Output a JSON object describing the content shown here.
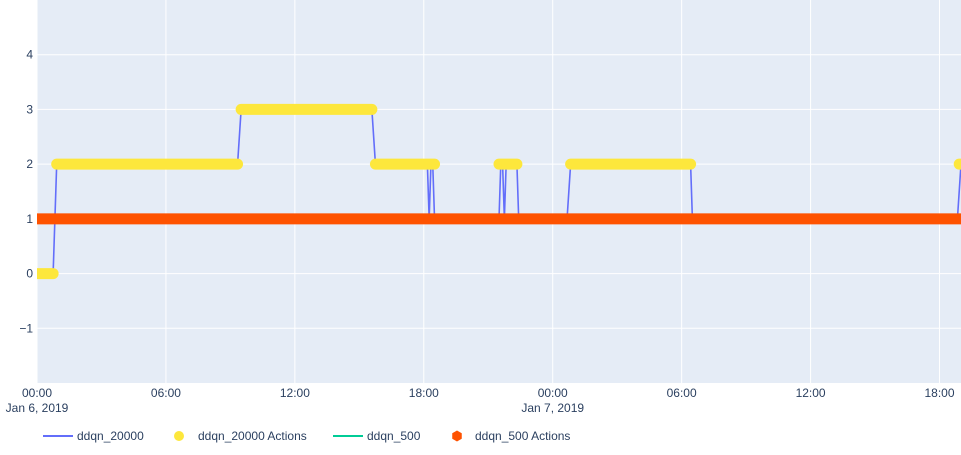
{
  "chart_data": {
    "type": "line",
    "colors": {
      "plot_bg": "#e5ecf6",
      "grid": "#ffffff",
      "text": "#2a3f5f",
      "ddqn_20000": "#636efa",
      "ddqn_20000_actions": "#fde73c",
      "ddqn_500": "#00cc96",
      "ddqn_500_actions": "#fe5200"
    },
    "x_axis": {
      "start": "2019-01-06 00:00",
      "end": "2019-01-07 19:00",
      "tick_labels": [
        {
          "time": "2019-01-06 00:00",
          "line1": "00:00",
          "line2": "Jan 6, 2019"
        },
        {
          "time": "2019-01-06 06:00",
          "line1": "06:00",
          "line2": ""
        },
        {
          "time": "2019-01-06 12:00",
          "line1": "12:00",
          "line2": ""
        },
        {
          "time": "2019-01-06 18:00",
          "line1": "18:00",
          "line2": ""
        },
        {
          "time": "2019-01-07 00:00",
          "line1": "00:00",
          "line2": "Jan 7, 2019"
        },
        {
          "time": "2019-01-07 06:00",
          "line1": "06:00",
          "line2": ""
        },
        {
          "time": "2019-01-07 12:00",
          "line1": "12:00",
          "line2": ""
        },
        {
          "time": "2019-01-07 18:00",
          "line1": "18:00",
          "line2": ""
        }
      ]
    },
    "y_axis": {
      "range": [
        -2,
        5
      ],
      "ticks": [
        -1,
        0,
        1,
        2,
        3,
        4
      ],
      "tick_labels": [
        "−1",
        "0",
        "1",
        "2",
        "3",
        "4"
      ]
    },
    "series": [
      {
        "name": "ddqn_20000",
        "mode": "line",
        "points": [
          [
            "2019-01-06 00:00",
            0
          ],
          [
            "2019-01-06 00:45",
            0
          ],
          [
            "2019-01-06 00:55",
            2
          ],
          [
            "2019-01-06 09:20",
            2
          ],
          [
            "2019-01-06 09:30",
            3
          ],
          [
            "2019-01-06 15:35",
            3
          ],
          [
            "2019-01-06 15:45",
            2
          ],
          [
            "2019-01-06 18:10",
            2
          ],
          [
            "2019-01-06 18:15",
            1
          ],
          [
            "2019-01-06 18:20",
            2
          ],
          [
            "2019-01-06 18:25",
            2
          ],
          [
            "2019-01-06 18:30",
            1
          ],
          [
            "2019-01-06 21:30",
            1
          ],
          [
            "2019-01-06 21:35",
            2
          ],
          [
            "2019-01-06 21:40",
            2
          ],
          [
            "2019-01-06 21:45",
            1
          ],
          [
            "2019-01-06 21:50",
            2
          ],
          [
            "2019-01-06 22:20",
            2
          ],
          [
            "2019-01-06 22:25",
            1
          ],
          [
            "2019-01-07 00:40",
            1
          ],
          [
            "2019-01-07 00:50",
            2
          ],
          [
            "2019-01-07 06:25",
            2
          ],
          [
            "2019-01-07 06:30",
            1
          ],
          [
            "2019-01-07 18:50",
            1
          ],
          [
            "2019-01-07 19:00",
            2
          ]
        ]
      },
      {
        "name": "ddqn_20000 Actions",
        "mode": "markers",
        "segments": [
          {
            "start": "2019-01-06 00:00",
            "end": "2019-01-06 00:45",
            "y": 0
          },
          {
            "start": "2019-01-06 00:55",
            "end": "2019-01-06 09:20",
            "y": 2
          },
          {
            "start": "2019-01-06 09:30",
            "end": "2019-01-06 15:35",
            "y": 3
          },
          {
            "start": "2019-01-06 15:45",
            "end": "2019-01-06 18:30",
            "y": 2
          },
          {
            "start": "2019-01-06 21:30",
            "end": "2019-01-06 22:20",
            "y": 2
          },
          {
            "start": "2019-01-07 00:50",
            "end": "2019-01-07 06:25",
            "y": 2
          },
          {
            "start": "2019-01-07 18:55",
            "end": "2019-01-07 19:00",
            "y": 2
          }
        ]
      },
      {
        "name": "ddqn_500",
        "mode": "line",
        "points": [
          [
            "2019-01-06 00:00",
            1
          ],
          [
            "2019-01-07 19:00",
            1
          ]
        ]
      },
      {
        "name": "ddqn_500 Actions",
        "mode": "markers",
        "segments": [
          {
            "start": "2019-01-06 00:00",
            "end": "2019-01-07 19:00",
            "y": 1
          }
        ]
      }
    ],
    "legend": {
      "placement": "bottom-left",
      "items": [
        {
          "label": "ddqn_20000",
          "symbol": "line",
          "color_key": "ddqn_20000"
        },
        {
          "label": "ddqn_20000 Actions",
          "symbol": "circle",
          "color_key": "ddqn_20000_actions"
        },
        {
          "label": "ddqn_500",
          "symbol": "line",
          "color_key": "ddqn_500"
        },
        {
          "label": "ddqn_500 Actions",
          "symbol": "hexagon",
          "color_key": "ddqn_500_actions"
        }
      ]
    },
    "grid": true
  }
}
